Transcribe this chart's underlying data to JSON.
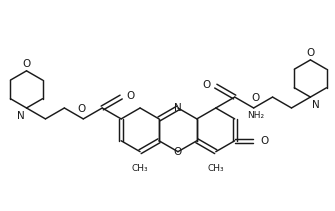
{
  "bg": "#ffffff",
  "lc": "#1a1a1a",
  "lw": 1.05,
  "figsize": [
    3.35,
    2.11
  ],
  "dpi": 100,
  "xlim": [
    0,
    335
  ],
  "ylim": [
    0,
    211
  ]
}
